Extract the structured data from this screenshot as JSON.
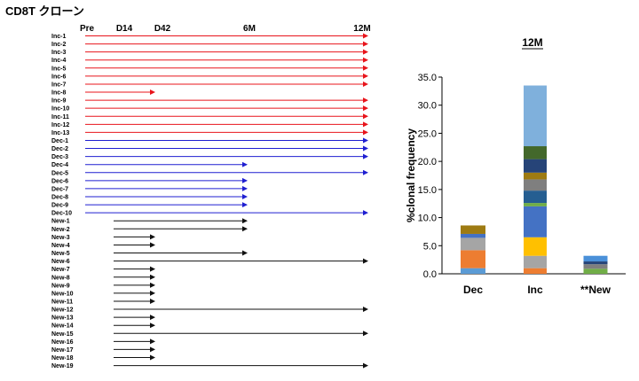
{
  "title": "CD8T クローン",
  "chart_data": [
    {
      "type": "timeline",
      "timepoints": [
        "Pre",
        "D14",
        "D42",
        "6M",
        "12M"
      ],
      "clones": [
        {
          "name": "Inc-1",
          "start": "Pre",
          "end": "12M",
          "group": "Inc"
        },
        {
          "name": "Inc-2",
          "start": "Pre",
          "end": "12M",
          "group": "Inc"
        },
        {
          "name": "Inc-3",
          "start": "Pre",
          "end": "12M",
          "group": "Inc"
        },
        {
          "name": "Inc-4",
          "start": "Pre",
          "end": "12M",
          "group": "Inc"
        },
        {
          "name": "Inc-5",
          "start": "Pre",
          "end": "12M",
          "group": "Inc"
        },
        {
          "name": "Inc-6",
          "start": "Pre",
          "end": "12M",
          "group": "Inc"
        },
        {
          "name": "Inc-7",
          "start": "Pre",
          "end": "12M",
          "group": "Inc"
        },
        {
          "name": "Inc-8",
          "start": "Pre",
          "end": "D42",
          "group": "Inc"
        },
        {
          "name": "Inc-9",
          "start": "Pre",
          "end": "12M",
          "group": "Inc"
        },
        {
          "name": "Inc-10",
          "start": "Pre",
          "end": "12M",
          "group": "Inc"
        },
        {
          "name": "Inc-11",
          "start": "Pre",
          "end": "12M",
          "group": "Inc"
        },
        {
          "name": "Inc-12",
          "start": "Pre",
          "end": "12M",
          "group": "Inc"
        },
        {
          "name": "Inc-13",
          "start": "Pre",
          "end": "12M",
          "group": "Inc"
        },
        {
          "name": "Dec-1",
          "start": "Pre",
          "end": "12M",
          "group": "Dec"
        },
        {
          "name": "Dec-2",
          "start": "Pre",
          "end": "12M",
          "group": "Dec"
        },
        {
          "name": "Dec-3",
          "start": "Pre",
          "end": "12M",
          "group": "Dec"
        },
        {
          "name": "Dec-4",
          "start": "Pre",
          "end": "6M",
          "group": "Dec"
        },
        {
          "name": "Dec-5",
          "start": "Pre",
          "end": "12M",
          "group": "Dec"
        },
        {
          "name": "Dec-6",
          "start": "Pre",
          "end": "6M",
          "group": "Dec"
        },
        {
          "name": "Dec-7",
          "start": "Pre",
          "end": "6M",
          "group": "Dec"
        },
        {
          "name": "Dec-8",
          "start": "Pre",
          "end": "6M",
          "group": "Dec"
        },
        {
          "name": "Dec-9",
          "start": "Pre",
          "end": "6M",
          "group": "Dec"
        },
        {
          "name": "Dec-10",
          "start": "Pre",
          "end": "12M",
          "group": "Dec"
        },
        {
          "name": "New-1",
          "start": "D14",
          "end": "6M",
          "group": "New"
        },
        {
          "name": "New-2",
          "start": "D14",
          "end": "6M",
          "group": "New"
        },
        {
          "name": "New-3",
          "start": "D14",
          "end": "D42",
          "group": "New"
        },
        {
          "name": "New-4",
          "start": "D14",
          "end": "D42",
          "group": "New"
        },
        {
          "name": "New-5",
          "start": "D14",
          "end": "6M",
          "group": "New"
        },
        {
          "name": "New-6",
          "start": "D14",
          "end": "12M",
          "group": "New"
        },
        {
          "name": "New-7",
          "start": "D14",
          "end": "D42",
          "group": "New"
        },
        {
          "name": "New-8",
          "start": "D14",
          "end": "D42",
          "group": "New"
        },
        {
          "name": "New-9",
          "start": "D14",
          "end": "D42",
          "group": "New"
        },
        {
          "name": "New-10",
          "start": "D14",
          "end": "D42",
          "group": "New"
        },
        {
          "name": "New-11",
          "start": "D14",
          "end": "D42",
          "group": "New"
        },
        {
          "name": "New-12",
          "start": "D14",
          "end": "12M",
          "group": "New"
        },
        {
          "name": "New-13",
          "start": "D14",
          "end": "D42",
          "group": "New"
        },
        {
          "name": "New-14",
          "start": "D14",
          "end": "D42",
          "group": "New"
        },
        {
          "name": "New-15",
          "start": "D14",
          "end": "12M",
          "group": "New"
        },
        {
          "name": "New-16",
          "start": "D14",
          "end": "D42",
          "group": "New"
        },
        {
          "name": "New-17",
          "start": "D14",
          "end": "D42",
          "group": "New"
        },
        {
          "name": "New-18",
          "start": "D14",
          "end": "D42",
          "group": "New"
        },
        {
          "name": "New-19",
          "start": "D14",
          "end": "12M",
          "group": "New"
        }
      ],
      "group_colors": {
        "Inc": "#e8141b",
        "Dec": "#1f1fd1",
        "New": "#111111"
      }
    },
    {
      "type": "bar",
      "stacked": true,
      "title": "12M",
      "ylabel": "%clonal frequency",
      "ylim": [
        0,
        35
      ],
      "yticks": [
        "0.0",
        "5.0",
        "10.0",
        "15.0",
        "20.0",
        "25.0",
        "30.0",
        "35.0"
      ],
      "categories": [
        "Dec",
        "Inc",
        "**New"
      ],
      "stacks": [
        [
          {
            "value": 1.0,
            "color": "#5b9bd5"
          },
          {
            "value": 3.2,
            "color": "#ed7d31"
          },
          {
            "value": 2.2,
            "color": "#a5a5a5"
          },
          {
            "value": 0.7,
            "color": "#4472c4"
          },
          {
            "value": 1.5,
            "color": "#9e7b12"
          }
        ],
        [
          {
            "value": 1.0,
            "color": "#ed7d31"
          },
          {
            "value": 2.2,
            "color": "#a5a5a5"
          },
          {
            "value": 3.3,
            "color": "#ffc000"
          },
          {
            "value": 5.5,
            "color": "#4472c4"
          },
          {
            "value": 0.6,
            "color": "#70ad47"
          },
          {
            "value": 2.2,
            "color": "#255e91"
          },
          {
            "value": 2.0,
            "color": "#7f7f7f"
          },
          {
            "value": 1.2,
            "color": "#9e7b12"
          },
          {
            "value": 2.4,
            "color": "#264478"
          },
          {
            "value": 2.3,
            "color": "#43682b"
          },
          {
            "value": 10.8,
            "color": "#7fb0dc"
          }
        ],
        [
          {
            "value": 0.9,
            "color": "#70ad47"
          },
          {
            "value": 0.8,
            "color": "#7f7f7f"
          },
          {
            "value": 0.5,
            "color": "#264478"
          },
          {
            "value": 1.0,
            "color": "#4a90d9"
          }
        ]
      ]
    }
  ]
}
